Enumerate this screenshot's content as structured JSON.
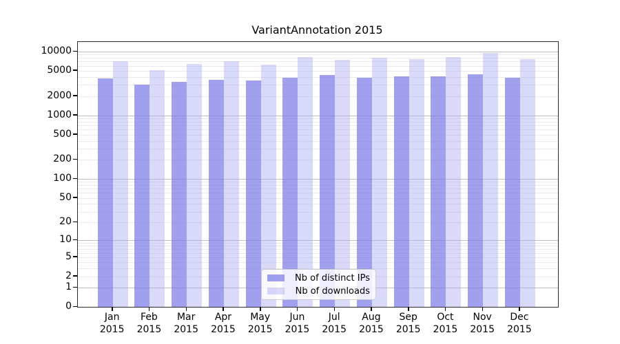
{
  "figure": {
    "title": "VariantAnnotation 2015"
  },
  "chart_data": {
    "type": "bar",
    "title": "VariantAnnotation 2015",
    "categories": [
      "Jan",
      "Feb",
      "Mar",
      "Apr",
      "May",
      "Jun",
      "Jul",
      "Aug",
      "Sep",
      "Oct",
      "Nov",
      "Dec"
    ],
    "year_label": "2015",
    "series": [
      {
        "name": "Nb of distinct IPs",
        "color": "rgba(124,124,232,0.72)",
        "values": [
          3800,
          3000,
          3350,
          3600,
          3500,
          3850,
          4300,
          3900,
          4100,
          4050,
          4400,
          3900
        ]
      },
      {
        "name": "Nb of downloads",
        "color": "rgba(170,170,245,0.45)",
        "values": [
          7100,
          5100,
          6450,
          7000,
          6300,
          8100,
          7500,
          7900,
          7600,
          8300,
          9400,
          7600
        ]
      }
    ],
    "yscale": "log1p",
    "y_ticks": [
      0,
      1,
      2,
      5,
      10,
      20,
      50,
      100,
      200,
      500,
      1000,
      2000,
      5000,
      10000
    ],
    "ylim": [
      0,
      14000
    ],
    "grid": true,
    "legend_position": "lower center",
    "xlabel": "",
    "ylabel": ""
  }
}
